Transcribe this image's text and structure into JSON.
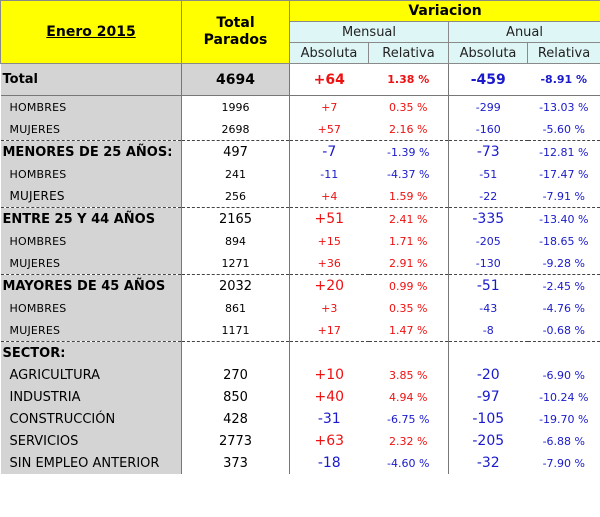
{
  "header": {
    "title": "Enero 2015",
    "total_line1": "Total",
    "total_line2": "Parados",
    "variacion": "Variacion",
    "mensual": "Mensual",
    "anual": "Anual",
    "absoluta": "Absoluta",
    "relativa": "Relativa"
  },
  "rows": [
    {
      "label": "Total",
      "total": "4694",
      "m_abs": "+64",
      "m_rel": "1.38 %",
      "a_abs": "-459",
      "a_rel": "-8.91 %"
    },
    {
      "label": "HOMBRES",
      "total": "1996",
      "m_abs": "+7",
      "m_rel": "0.35 %",
      "a_abs": "-299",
      "a_rel": "-13.03 %"
    },
    {
      "label": "MUJERES",
      "total": "2698",
      "m_abs": "+57",
      "m_rel": "2.16 %",
      "a_abs": "-160",
      "a_rel": "-5.60 %"
    },
    {
      "label": "MENORES DE 25 AÑOS:",
      "total": "497",
      "m_abs": "-7",
      "m_rel": "-1.39 %",
      "a_abs": "-73",
      "a_rel": "-12.81 %"
    },
    {
      "label": "HOMBRES",
      "total": "241",
      "m_abs": "-11",
      "m_rel": "-4.37 %",
      "a_abs": "-51",
      "a_rel": "-17.47 %"
    },
    {
      "label": "MUJERES",
      "total": "256",
      "m_abs": "+4",
      "m_rel": "1.59 %",
      "a_abs": "-22",
      "a_rel": "-7.91 %"
    },
    {
      "label": "ENTRE 25 Y 44 AÑOS",
      "total": "2165",
      "m_abs": "+51",
      "m_rel": "2.41 %",
      "a_abs": "-335",
      "a_rel": "-13.40 %"
    },
    {
      "label": "HOMBRES",
      "total": "894",
      "m_abs": "+15",
      "m_rel": "1.71 %",
      "a_abs": "-205",
      "a_rel": "-18.65 %"
    },
    {
      "label": "MUJERES",
      "total": "1271",
      "m_abs": "+36",
      "m_rel": "2.91 %",
      "a_abs": "-130",
      "a_rel": "-9.28 %"
    },
    {
      "label": "MAYORES DE 45 AÑOS",
      "total": "2032",
      "m_abs": "+20",
      "m_rel": "0.99 %",
      "a_abs": "-51",
      "a_rel": "-2.45 %"
    },
    {
      "label": "HOMBRES",
      "total": "861",
      "m_abs": "+3",
      "m_rel": "0.35 %",
      "a_abs": "-43",
      "a_rel": "-4.76 %"
    },
    {
      "label": "MUJERES",
      "total": "1171",
      "m_abs": "+17",
      "m_rel": "1.47 %",
      "a_abs": "-8",
      "a_rel": "-0.68 %"
    },
    {
      "label": "SECTOR:"
    },
    {
      "label": "AGRICULTURA",
      "total": "270",
      "m_abs": "+10",
      "m_rel": "3.85 %",
      "a_abs": "-20",
      "a_rel": "-6.90 %"
    },
    {
      "label": "INDUSTRIA",
      "total": "850",
      "m_abs": "+40",
      "m_rel": "4.94 %",
      "a_abs": "-97",
      "a_rel": "-10.24 %"
    },
    {
      "label": "CONSTRUCCIÓN",
      "total": "428",
      "m_abs": "-31",
      "m_rel": "-6.75 %",
      "a_abs": "-105",
      "a_rel": "-19.70 %"
    },
    {
      "label": "SERVICIOS",
      "total": "2773",
      "m_abs": "+63",
      "m_rel": "2.32 %",
      "a_abs": "-205",
      "a_rel": "-6.88 %"
    },
    {
      "label": "SIN EMPLEO ANTERIOR",
      "total": "373",
      "m_abs": "-18",
      "m_rel": "-4.60 %",
      "a_abs": "-32",
      "a_rel": "-7.90 %"
    }
  ],
  "colors": {
    "header": "#ffff00",
    "subheader": "#dff6f6",
    "label_column": "#d4d4d4",
    "positive": "#ee1111",
    "negative": "#1a1acc"
  }
}
